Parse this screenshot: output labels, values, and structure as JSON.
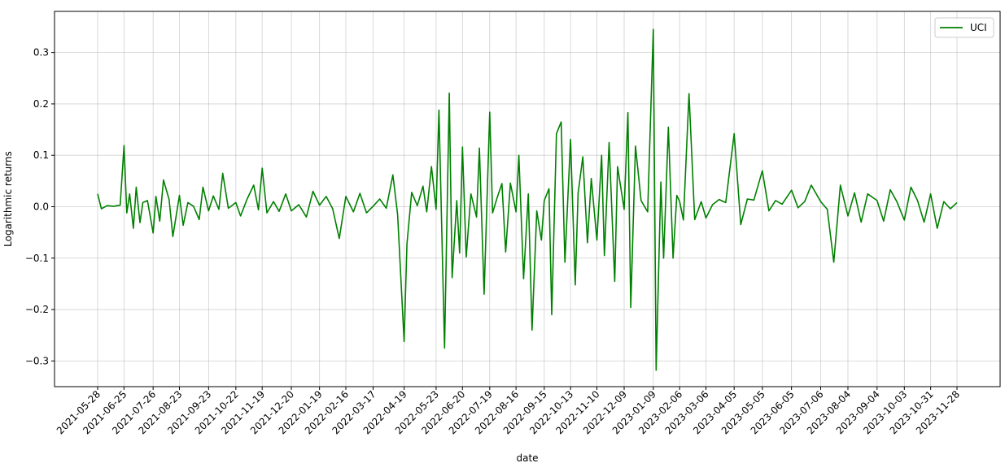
{
  "chart_data": {
    "type": "line",
    "title": "",
    "xlabel": "date",
    "ylabel": "Logarithmic returns",
    "ylim": [
      -0.35,
      0.38
    ],
    "yticks": [
      -0.3,
      -0.2,
      -0.1,
      0.0,
      0.1,
      0.2,
      0.3
    ],
    "ytick_labels": [
      "−0.3",
      "−0.2",
      "−0.1",
      "0.0",
      "0.1",
      "0.2",
      "0.3"
    ],
    "xticks": [
      "2021-05-28",
      "2021-06-25",
      "2021-07-26",
      "2021-08-23",
      "2021-09-23",
      "2021-10-22",
      "2021-11-19",
      "2021-12-20",
      "2022-01-19",
      "2022-02-16",
      "2022-03-17",
      "2022-04-19",
      "2022-05-23",
      "2022-06-20",
      "2022-07-19",
      "2022-08-16",
      "2022-09-15",
      "2022-10-13",
      "2022-11-10",
      "2022-12-09",
      "2023-01-09",
      "2023-02-06",
      "2023-03-06",
      "2023-04-05",
      "2023-05-05",
      "2023-06-05",
      "2023-07-06",
      "2023-08-04",
      "2023-09-04",
      "2023-10-03",
      "2023-10-31",
      "2023-11-28"
    ],
    "grid": true,
    "legend_position": "top-right",
    "series": [
      {
        "name": "UCI",
        "color": "#008000",
        "x": [
          "2021-05-28",
          "2021-06-01",
          "2021-06-07",
          "2021-06-14",
          "2021-06-21",
          "2021-06-25",
          "2021-06-28",
          "2021-07-01",
          "2021-07-05",
          "2021-07-08",
          "2021-07-12",
          "2021-07-15",
          "2021-07-20",
          "2021-07-26",
          "2021-07-29",
          "2021-08-02",
          "2021-08-06",
          "2021-08-12",
          "2021-08-16",
          "2021-08-23",
          "2021-08-27",
          "2021-09-01",
          "2021-09-07",
          "2021-09-13",
          "2021-09-17",
          "2021-09-23",
          "2021-09-28",
          "2021-10-04",
          "2021-10-08",
          "2021-10-14",
          "2021-10-22",
          "2021-10-27",
          "2021-11-03",
          "2021-11-10",
          "2021-11-15",
          "2021-11-19",
          "2021-11-24",
          "2021-12-01",
          "2021-12-07",
          "2021-12-14",
          "2021-12-20",
          "2021-12-28",
          "2022-01-05",
          "2022-01-12",
          "2022-01-19",
          "2022-01-26",
          "2022-02-02",
          "2022-02-09",
          "2022-02-16",
          "2022-02-24",
          "2022-03-03",
          "2022-03-10",
          "2022-03-17",
          "2022-03-24",
          "2022-03-31",
          "2022-04-07",
          "2022-04-12",
          "2022-04-19",
          "2022-04-22",
          "2022-04-27",
          "2022-05-03",
          "2022-05-09",
          "2022-05-13",
          "2022-05-18",
          "2022-05-23",
          "2022-05-26",
          "2022-06-01",
          "2022-06-06",
          "2022-06-09",
          "2022-06-14",
          "2022-06-17",
          "2022-06-20",
          "2022-06-24",
          "2022-06-29",
          "2022-07-05",
          "2022-07-08",
          "2022-07-13",
          "2022-07-19",
          "2022-07-22",
          "2022-07-27",
          "2022-08-01",
          "2022-08-05",
          "2022-08-10",
          "2022-08-16",
          "2022-08-19",
          "2022-08-24",
          "2022-08-29",
          "2022-09-02",
          "2022-09-07",
          "2022-09-12",
          "2022-09-15",
          "2022-09-20",
          "2022-09-23",
          "2022-09-28",
          "2022-10-03",
          "2022-10-07",
          "2022-10-13",
          "2022-10-18",
          "2022-10-21",
          "2022-10-26",
          "2022-10-31",
          "2022-11-04",
          "2022-11-10",
          "2022-11-15",
          "2022-11-18",
          "2022-11-23",
          "2022-11-29",
          "2022-12-02",
          "2022-12-09",
          "2022-12-13",
          "2022-12-16",
          "2022-12-21",
          "2022-12-27",
          "2023-01-03",
          "2023-01-09",
          "2023-01-12",
          "2023-01-17",
          "2023-01-20",
          "2023-01-25",
          "2023-01-30",
          "2023-02-03",
          "2023-02-06",
          "2023-02-10",
          "2023-02-16",
          "2023-02-22",
          "2023-03-01",
          "2023-03-06",
          "2023-03-13",
          "2023-03-20",
          "2023-03-27",
          "2023-04-05",
          "2023-04-12",
          "2023-04-19",
          "2023-04-26",
          "2023-05-05",
          "2023-05-12",
          "2023-05-19",
          "2023-05-26",
          "2023-06-05",
          "2023-06-12",
          "2023-06-19",
          "2023-06-26",
          "2023-07-06",
          "2023-07-13",
          "2023-07-20",
          "2023-07-27",
          "2023-08-04",
          "2023-08-11",
          "2023-08-18",
          "2023-08-25",
          "2023-09-04",
          "2023-09-11",
          "2023-09-18",
          "2023-09-25",
          "2023-10-03",
          "2023-10-10",
          "2023-10-17",
          "2023-10-24",
          "2023-10-31",
          "2023-11-07",
          "2023-11-14",
          "2023-11-21",
          "2023-11-28"
        ],
        "y": [
          0.025,
          -0.004,
          0.002,
          0.001,
          0.003,
          0.119,
          -0.012,
          0.025,
          -0.042,
          0.038,
          -0.031,
          0.008,
          0.012,
          -0.051,
          0.02,
          -0.028,
          0.052,
          0.014,
          -0.058,
          0.022,
          -0.036,
          0.008,
          0.001,
          -0.025,
          0.038,
          -0.008,
          0.021,
          -0.005,
          0.065,
          -0.003,
          0.008,
          -0.018,
          0.015,
          0.042,
          -0.006,
          0.075,
          -0.012,
          0.01,
          -0.009,
          0.025,
          -0.008,
          0.004,
          -0.02,
          0.03,
          0.003,
          0.02,
          -0.004,
          -0.062,
          0.02,
          -0.01,
          0.026,
          -0.012,
          0.001,
          0.015,
          -0.003,
          0.062,
          -0.015,
          -0.262,
          -0.072,
          0.028,
          0.002,
          0.04,
          -0.01,
          0.078,
          -0.005,
          0.188,
          -0.275,
          0.221,
          -0.138,
          0.012,
          -0.09,
          0.116,
          -0.098,
          0.025,
          -0.02,
          0.114,
          -0.17,
          0.184,
          -0.012,
          0.018,
          0.045,
          -0.088,
          0.046,
          -0.01,
          0.1,
          -0.14,
          0.025,
          -0.24,
          -0.008,
          -0.065,
          0.012,
          0.035,
          -0.21,
          0.142,
          0.165,
          -0.108,
          0.131,
          -0.152,
          0.026,
          0.097,
          -0.07,
          0.055,
          -0.065,
          0.1,
          -0.095,
          0.125,
          -0.145,
          0.078,
          -0.005,
          0.183,
          -0.196,
          0.118,
          0.012,
          -0.01,
          0.345,
          -0.318,
          0.048,
          -0.1,
          0.155,
          -0.1,
          0.022,
          0.01,
          -0.026,
          0.22,
          -0.025,
          0.01,
          -0.022,
          0.004,
          0.014,
          0.008,
          0.142,
          -0.035,
          0.015,
          0.013,
          0.07,
          -0.008,
          0.012,
          0.005,
          0.032,
          -0.002,
          0.01,
          0.042,
          0.01,
          -0.005,
          -0.108,
          0.042,
          -0.018,
          0.027,
          -0.03,
          0.025,
          0.012,
          -0.028,
          0.033,
          0.01,
          -0.026,
          0.038,
          0.012,
          -0.03,
          0.025,
          -0.042,
          0.01,
          -0.004,
          0.008
        ]
      }
    ]
  }
}
